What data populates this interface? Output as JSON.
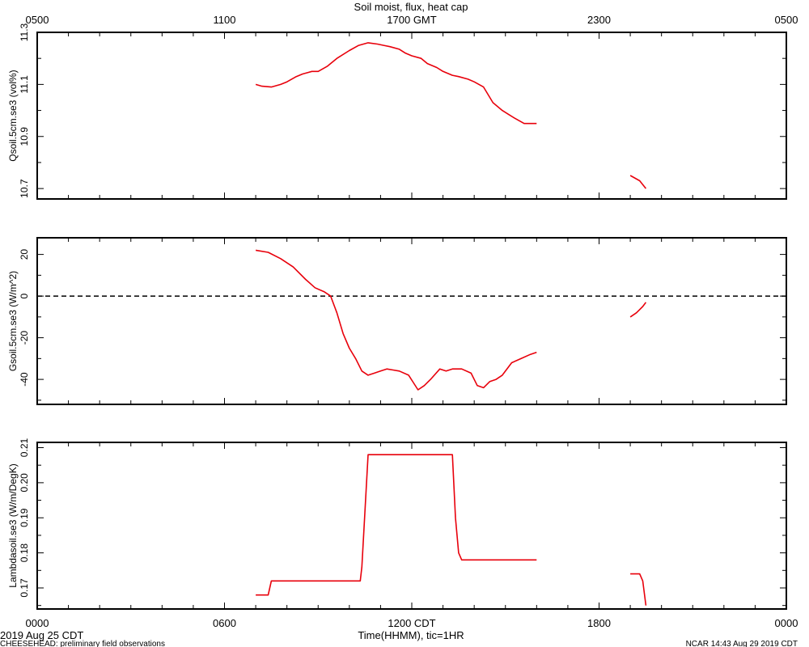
{
  "figure": {
    "title": "Soil moist, flux, heat cap",
    "top_axis_ticks": [
      "0500",
      "1100",
      "1700 GMT",
      "2300",
      "0500"
    ],
    "bottom_axis_ticks": [
      "0000",
      "0600",
      "1200 CDT",
      "1800",
      "0000"
    ],
    "xlabel": "Time(HHMM), tic=1HR",
    "date_label": "2019 Aug 25 CDT",
    "footer_left": "CHEESEHEAD: preliminary field observations",
    "footer_right": "NCAR 14:43 Aug 29 2019 CDT",
    "line_color": "#e8000b",
    "axis_color": "#000000"
  },
  "chart_data": [
    {
      "type": "line",
      "ylabel": "Qsoil.5cm.se3 (vol%)",
      "xlim": [
        0,
        24
      ],
      "ylim": [
        10.66,
        11.3
      ],
      "yticks": [
        "10.7",
        "10.9",
        "11.1",
        "11.3"
      ],
      "series": [
        {
          "segments": [
            {
              "x": [
                7.0,
                7.2,
                7.5,
                7.8,
                8.0,
                8.3,
                8.5,
                8.8,
                9.0,
                9.3,
                9.6,
                10.0,
                10.3,
                10.6,
                10.9,
                11.1,
                11.3,
                11.6,
                11.8,
                12.0,
                12.3,
                12.5,
                12.8,
                13.0,
                13.3,
                13.5,
                13.8,
                14.0,
                14.3,
                14.6,
                14.9,
                15.1,
                15.3,
                15.6,
                16.0
              ],
              "y": [
                11.1,
                11.093,
                11.09,
                11.1,
                11.11,
                11.13,
                11.14,
                11.15,
                11.15,
                11.17,
                11.2,
                11.23,
                11.25,
                11.26,
                11.255,
                11.25,
                11.245,
                11.235,
                11.22,
                11.21,
                11.2,
                11.18,
                11.165,
                11.15,
                11.135,
                11.13,
                11.12,
                11.11,
                11.09,
                11.03,
                11.0,
                10.985,
                10.97,
                10.95,
                10.95
              ]
            },
            {
              "x": [
                19.0,
                19.3,
                19.5
              ],
              "y": [
                10.75,
                10.73,
                10.7
              ]
            }
          ]
        }
      ]
    },
    {
      "type": "line",
      "ylabel": "Gsoil.5cm.se3 (W/m^2)",
      "xlim": [
        0,
        24
      ],
      "ylim": [
        -52,
        28
      ],
      "yticks": [
        "-40",
        "-20",
        "0",
        "20"
      ],
      "zero_line": true,
      "series": [
        {
          "segments": [
            {
              "x": [
                7.0,
                7.4,
                7.8,
                8.2,
                8.6,
                8.9,
                9.2,
                9.4,
                9.6,
                9.8,
                10.0,
                10.2,
                10.4,
                10.6,
                10.8,
                11.0,
                11.2,
                11.4,
                11.6,
                11.9,
                12.2,
                12.4,
                12.6,
                12.9,
                13.1,
                13.3,
                13.6,
                13.9,
                14.1,
                14.3,
                14.5,
                14.7,
                14.9,
                15.2,
                15.5,
                15.8,
                16.0
              ],
              "y": [
                22,
                21,
                18,
                14,
                8,
                4,
                2,
                0,
                -8,
                -18,
                -25,
                -30,
                -36,
                -38,
                -37,
                -36,
                -35,
                -35.5,
                -36,
                -38,
                -45,
                -43,
                -40,
                -35,
                -36,
                -35,
                -35,
                -37,
                -43,
                -44,
                -41,
                -40,
                -38,
                -32,
                -30,
                -28,
                -27
              ]
            },
            {
              "x": [
                19.0,
                19.2,
                19.4,
                19.5
              ],
              "y": [
                -10,
                -8,
                -5,
                -3
              ]
            }
          ]
        }
      ]
    },
    {
      "type": "line",
      "ylabel": "Lambdasoil.se3 (W/m/DegK)",
      "xlim": [
        0,
        24
      ],
      "ylim": [
        0.164,
        0.2115
      ],
      "yticks": [
        "0.17",
        "0.18",
        "0.19",
        "0.20",
        "0.21"
      ],
      "series": [
        {
          "segments": [
            {
              "x": [
                7.0,
                7.4,
                7.5,
                10.35,
                10.4,
                10.6,
                13.3,
                13.4,
                13.5,
                13.6,
                16.0
              ],
              "y": [
                0.168,
                0.168,
                0.172,
                0.172,
                0.176,
                0.208,
                0.208,
                0.19,
                0.18,
                0.178,
                0.178
              ]
            },
            {
              "x": [
                19.0,
                19.3,
                19.4,
                19.5
              ],
              "y": [
                0.174,
                0.174,
                0.172,
                0.165
              ]
            }
          ]
        }
      ]
    }
  ]
}
